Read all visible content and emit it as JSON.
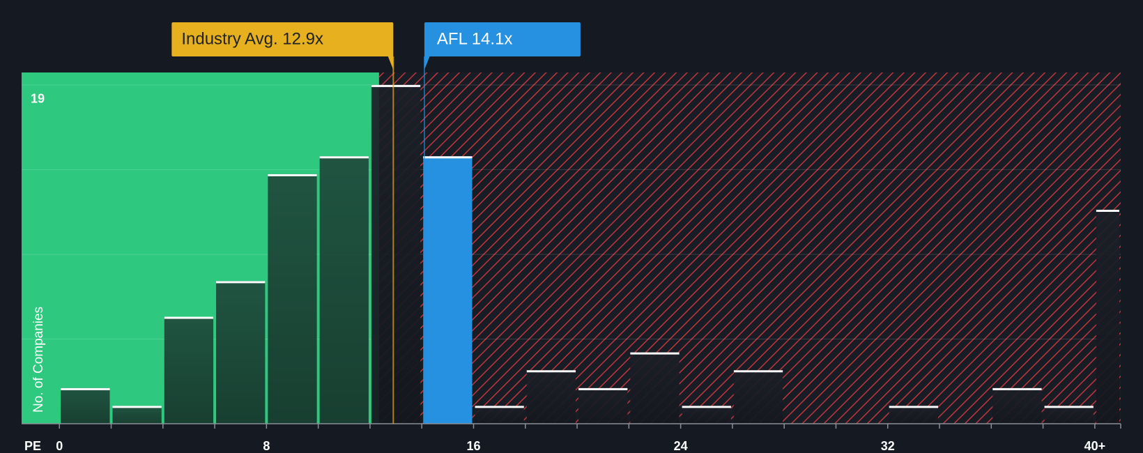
{
  "chart_data": {
    "type": "histogram",
    "x_label": "PE",
    "y_label": "No. of Companies",
    "bins": [
      0,
      2,
      4,
      6,
      8,
      10,
      12,
      14,
      16,
      18,
      20,
      22,
      24,
      26,
      28,
      30,
      32,
      34,
      36,
      38,
      40,
      41
    ],
    "counts": [
      2,
      1,
      6,
      8,
      14,
      15,
      19,
      15,
      1,
      3,
      2,
      4,
      1,
      3,
      0,
      0,
      1,
      0,
      2,
      1,
      12
    ],
    "xlim": [
      -1.46,
      41
    ],
    "xticks": [
      0,
      8,
      16,
      24,
      32,
      {
        "value": 40,
        "label": "40+"
      }
    ],
    "ylim": [
      0,
      19.7
    ],
    "yticks": [
      19
    ],
    "grid_lines": [
      4.75,
      9.5,
      14.25,
      19
    ],
    "bar_color": "#1f4a3c",
    "other_bar_color": "#1c2029",
    "highlight": 7,
    "highlight_color": "#2591e0",
    "zones": [
      {
        "end": 12.35,
        "color": "#2ec97e"
      },
      {
        "end": 41,
        "color": "#c0363c",
        "hatch": true
      }
    ],
    "annotations": [
      {
        "text": "Industry Avg. 12.9x",
        "value": 12.9,
        "color": "#e6b01e"
      },
      {
        "text": "AFL 14.1x",
        "value": 14.1,
        "color": "#2591e0"
      }
    ]
  }
}
